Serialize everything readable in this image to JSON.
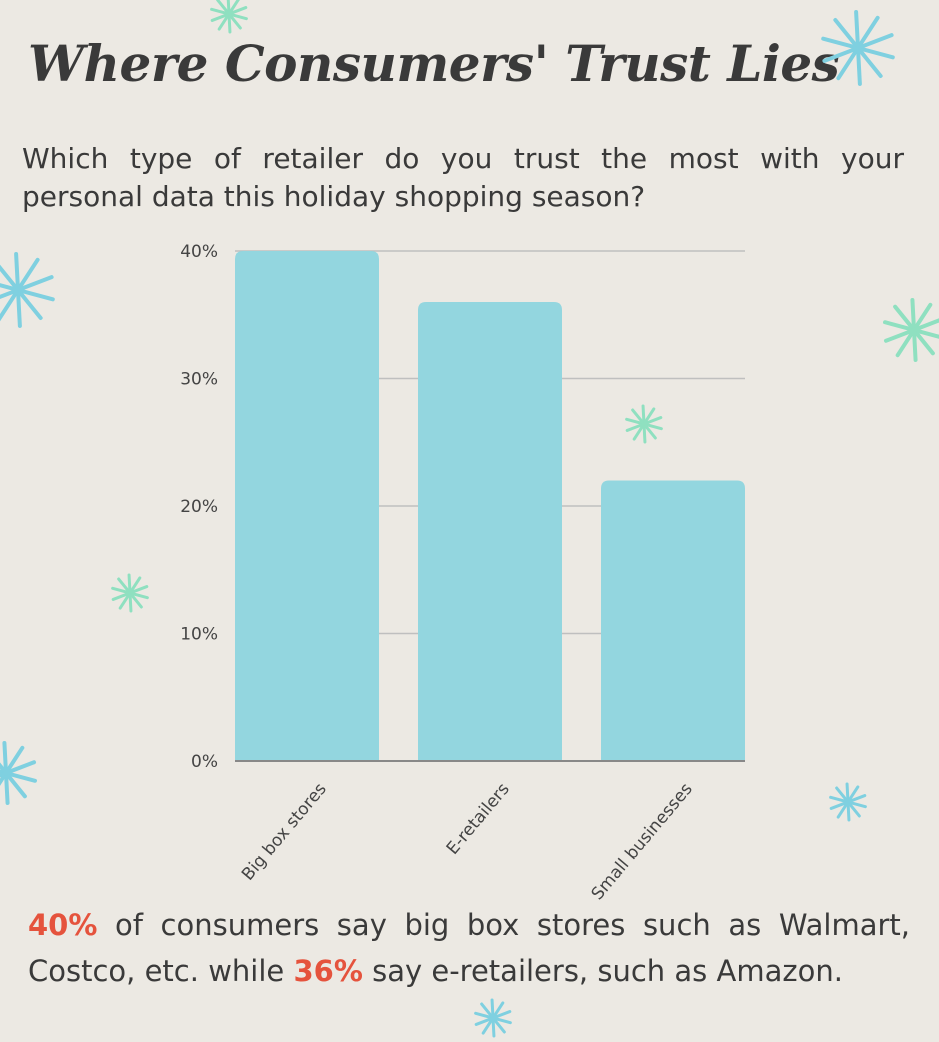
{
  "title": "Where Consumers' Trust Lies",
  "question": "Which type of retailer do you trust the most with your personal data this holiday shopping season?",
  "summary": {
    "stat1": "40%",
    "text1": " of consumers say big box stores such as Walmart, Costco, etc. while ",
    "stat2": "36%",
    "text2": " say e-retailers, such as Amazon."
  },
  "colors": {
    "background": "#ECE9E3",
    "bar": "#93D6DF",
    "highlight": "#E5533D",
    "gridline": "#BFBFBF",
    "star_blue": "#7FD0E0",
    "star_green": "#8FE0C0"
  },
  "decorations": [
    "snowflake-icon"
  ],
  "chart_data": {
    "type": "bar",
    "title": "",
    "categories": [
      "Big box stores",
      "E-retailers",
      "Small businesses"
    ],
    "values": [
      40,
      36,
      22
    ],
    "ylim": [
      0,
      40
    ],
    "yticks": [
      0,
      10,
      20,
      30,
      40
    ],
    "ytick_labels": [
      "0%",
      "10%",
      "20%",
      "30%",
      "40%"
    ],
    "xlabel": "",
    "ylabel": "",
    "grid": true,
    "legend": "none"
  }
}
